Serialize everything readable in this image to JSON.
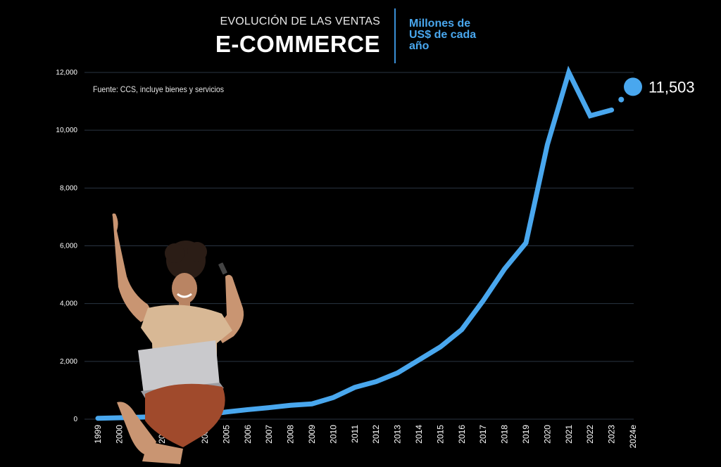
{
  "header": {
    "subtitle": "EVOLUCIÓN DE LAS VENTAS",
    "title": "E-COMMERCE",
    "units": "Millones de US$ de cada año"
  },
  "source_note": "Fuente: CCS, incluye bienes y servicios",
  "colors": {
    "line": "#49a7ee",
    "background": "#000000",
    "grid": "#2a3442"
  },
  "chart_data": {
    "type": "line",
    "title": "E-COMMERCE",
    "categories": [
      "1999",
      "2000",
      "2001",
      "2002",
      "2003",
      "2004",
      "2005",
      "2006",
      "2007",
      "2008",
      "2009",
      "2010",
      "2011",
      "2012",
      "2013",
      "2014",
      "2015",
      "2016",
      "2017",
      "2018",
      "2019",
      "2020",
      "2021",
      "2022",
      "2023",
      "2024e"
    ],
    "y_ticks": [
      "0",
      "2,000",
      "4,000",
      "6,000",
      "8,000",
      "10,000",
      "12,000"
    ],
    "ylim": [
      0,
      12000
    ],
    "grid": true,
    "series": [
      {
        "values": [
          30,
          50,
          70,
          90,
          120,
          150,
          250,
          330,
          400,
          480,
          530,
          750,
          1100,
          1300,
          1600,
          2050,
          2500,
          3100,
          4100,
          5200,
          6100,
          9500,
          12000,
          10500,
          10700,
          11503
        ]
      }
    ],
    "highlight": {
      "category": "2024e",
      "value": 11503,
      "label": "11,503"
    }
  },
  "illustration": {
    "description_icon": "woman-with-laptop-celebrating"
  }
}
